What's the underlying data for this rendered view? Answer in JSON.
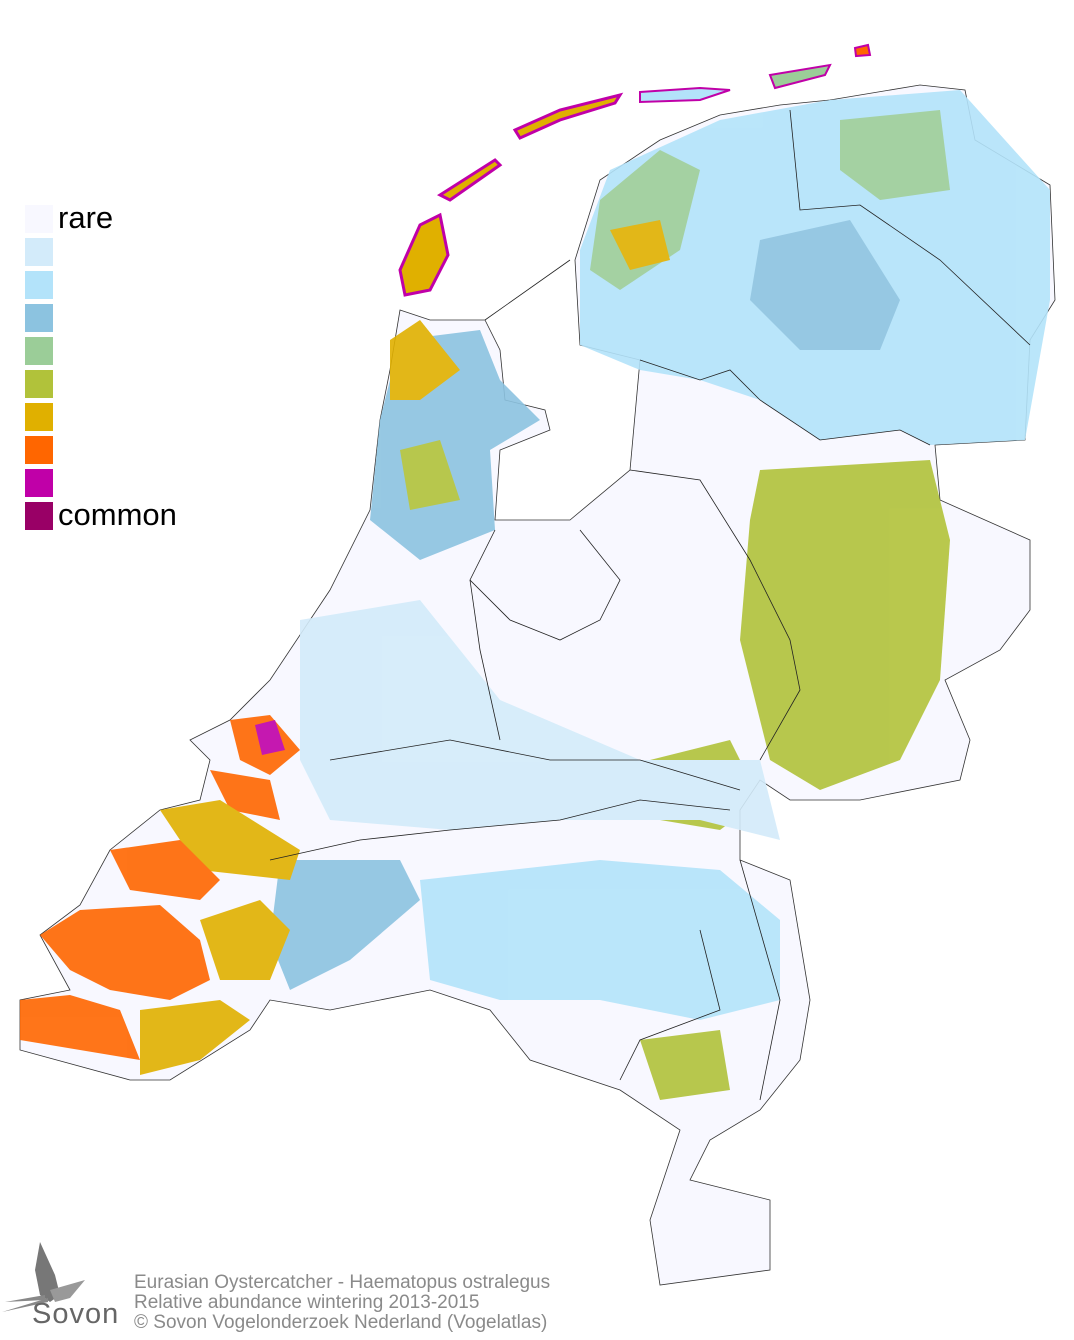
{
  "legend": {
    "items": [
      {
        "label": "rare",
        "color": "#f8f8ff"
      },
      {
        "label": "",
        "color": "#d3ebfa"
      },
      {
        "label": "",
        "color": "#b3e3fa"
      },
      {
        "label": "",
        "color": "#8cc3e0"
      },
      {
        "label": "",
        "color": "#9bcd98"
      },
      {
        "label": "",
        "color": "#b1c23a"
      },
      {
        "label": "",
        "color": "#e0b000"
      },
      {
        "label": "",
        "color": "#ff6600"
      },
      {
        "label": "",
        "color": "#c000a8"
      },
      {
        "label": "common",
        "color": "#990066"
      }
    ]
  },
  "footer": {
    "line1": "Eurasian Oystercatcher - Haematopus ostralegus",
    "line2": "Relative abundance wintering 2013-2015",
    "line3": "© Sovon Vogelonderzoek Nederland (Vogelatlas)"
  },
  "logo": {
    "text": "Sovon"
  }
}
